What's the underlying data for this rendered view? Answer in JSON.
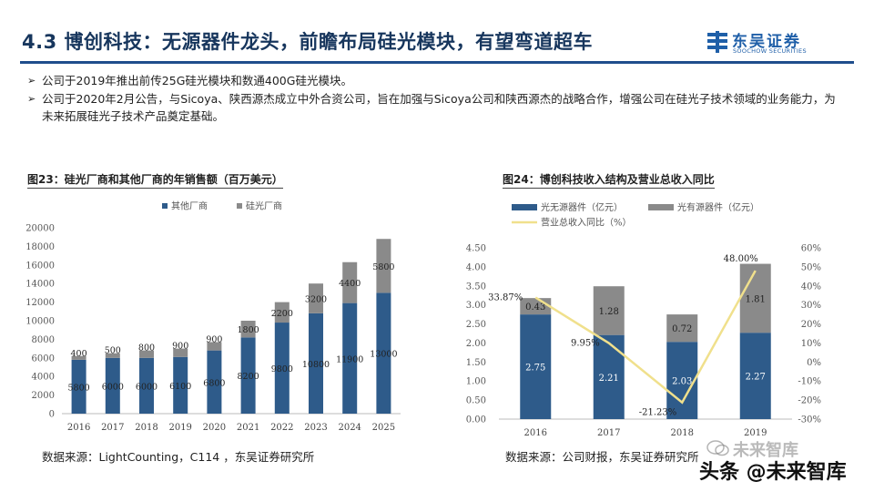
{
  "header": {
    "title": "4.3 博创科技：无源器件龙头，前瞻布局硅光模块，有望弯道超车",
    "logo_cn": "东吴证券",
    "logo_en": "SOOCHOW SECURITIES",
    "accent_color": "#1f4e8c"
  },
  "bullets": [
    "公司于2019年推出前传25G硅光模块和数通400G硅光模块。",
    "公司于2020年2月公告，与Sicoya、陕西源杰成立中外合资公司，旨在加强与Sicoya公司和陕西源杰的战略合作，增强公司在硅光子技术领域的业务能力，为未来拓展硅光子技术产品奠定基础。"
  ],
  "bullet_marker": "➢",
  "figure1": {
    "title": "图23：硅光厂商和其他厂商的年销售额（百万美元）",
    "source": "数据来源：LightCounting，C114 ，东吴证券研究所"
  },
  "figure2": {
    "title": "图24：博创科技收入结构及营业总收入同比",
    "source": "数据来源：公司财报，东吴证券研究所"
  },
  "watermark": {
    "line1": "未来智库",
    "line2": "头条 @未来智库"
  },
  "chart_data": [
    {
      "type": "bar",
      "stacked": true,
      "categories": [
        "2016",
        "2017",
        "2018",
        "2019",
        "2020",
        "2021",
        "2022",
        "2023",
        "2024",
        "2025"
      ],
      "series": [
        {
          "name": "其他厂商",
          "color": "#2e5b8a",
          "values": [
            5800,
            6000,
            6000,
            6100,
            6800,
            8200,
            9800,
            10800,
            11900,
            13000
          ]
        },
        {
          "name": "硅光厂商",
          "color": "#8a8a8a",
          "values": [
            400,
            500,
            800,
            900,
            900,
            1800,
            2200,
            3200,
            4400,
            5800
          ]
        }
      ],
      "ylim": [
        0,
        20000
      ],
      "yticks": [
        "0",
        "2000",
        "4000",
        "6000",
        "8000",
        "10000",
        "12000",
        "14000",
        "16000",
        "18000",
        "20000"
      ],
      "legend": "top"
    },
    {
      "type": "bar",
      "stacked": true,
      "categories": [
        "2016",
        "2017",
        "2018",
        "2019"
      ],
      "series": [
        {
          "name": "光无源器件（亿元）",
          "color": "#2e5b8a",
          "values": [
            2.75,
            2.21,
            2.03,
            2.27
          ]
        },
        {
          "name": "光有源器件（亿元）",
          "color": "#8a8a8a",
          "values": [
            0.43,
            1.28,
            0.72,
            1.81
          ]
        }
      ],
      "line": {
        "name": "营业总收入同比（%）",
        "color": "#f0e08c",
        "values": [
          33.87,
          9.95,
          -21.23,
          48.0
        ],
        "labels": [
          "33.87%",
          "9.95%",
          "-21.23%",
          "48.00%"
        ]
      },
      "ylim": [
        0,
        4.5
      ],
      "yticks": [
        "0.00",
        "0.50",
        "1.00",
        "1.50",
        "2.00",
        "2.50",
        "3.00",
        "3.50",
        "4.00",
        "4.50"
      ],
      "y2lim": [
        -30,
        60
      ],
      "y2ticks": [
        "-30%",
        "-20%",
        "-10%",
        "0%",
        "10%",
        "20%",
        "30%",
        "40%",
        "50%",
        "60%"
      ],
      "legend": "top"
    }
  ]
}
